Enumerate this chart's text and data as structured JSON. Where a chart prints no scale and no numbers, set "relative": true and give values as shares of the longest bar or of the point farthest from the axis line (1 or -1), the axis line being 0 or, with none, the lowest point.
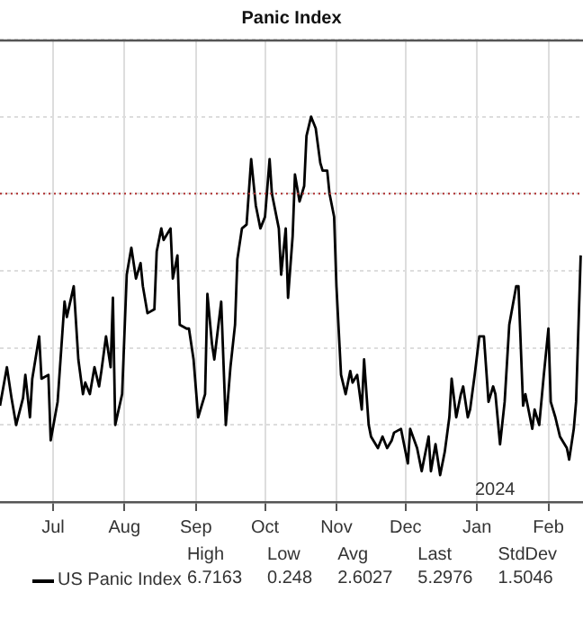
{
  "chart_data": {
    "type": "line",
    "title": "Panic Index",
    "relative": true,
    "grid": true,
    "legend": "bottom",
    "marker": "none",
    "line_style": "solid",
    "xlim": [
      "2023-06-08",
      "2024-02-16"
    ],
    "xticks": [
      {
        "value": "2023-07-01",
        "label": "Jul"
      },
      {
        "value": "2023-08-01",
        "label": "Aug"
      },
      {
        "value": "2023-09-01",
        "label": "Sep"
      },
      {
        "value": "2023-10-01",
        "label": "Oct"
      },
      {
        "value": "2023-11-01",
        "label": "Nov"
      },
      {
        "value": "2023-12-01",
        "label": "Dec"
      },
      {
        "value": "2024-01-01",
        "label": "Jan"
      },
      {
        "value": "2024-02-01",
        "label": "Feb"
      }
    ],
    "x": [
      "2023-06-08",
      "2023-06-11",
      "2023-06-13",
      "2023-06-15",
      "2023-06-18",
      "2023-06-19",
      "2023-06-21",
      "2023-06-22",
      "2023-06-25",
      "2023-06-26",
      "2023-06-29",
      "2023-06-30",
      "2023-07-03",
      "2023-07-06",
      "2023-07-07",
      "2023-07-10",
      "2023-07-12",
      "2023-07-14",
      "2023-07-15",
      "2023-07-17",
      "2023-07-19",
      "2023-07-21",
      "2023-07-22",
      "2023-07-24",
      "2023-07-26",
      "2023-07-27",
      "2023-07-28",
      "2023-07-31",
      "2023-08-02",
      "2023-08-04",
      "2023-08-06",
      "2023-08-08",
      "2023-08-09",
      "2023-08-11",
      "2023-08-14",
      "2023-08-15",
      "2023-08-17",
      "2023-08-18",
      "2023-08-21",
      "2023-08-22",
      "2023-08-24",
      "2023-08-25",
      "2023-08-28",
      "2023-08-29",
      "2023-08-31",
      "2023-09-02",
      "2023-09-05",
      "2023-09-06",
      "2023-09-08",
      "2023-09-09",
      "2023-09-12",
      "2023-09-14",
      "2023-09-16",
      "2023-09-18",
      "2023-09-19",
      "2023-09-21",
      "2023-09-23",
      "2023-09-25",
      "2023-09-27",
      "2023-09-29",
      "2023-10-01",
      "2023-10-03",
      "2023-10-04",
      "2023-10-07",
      "2023-10-08",
      "2023-10-10",
      "2023-10-11",
      "2023-10-13",
      "2023-10-14",
      "2023-10-16",
      "2023-10-18",
      "2023-10-19",
      "2023-10-21",
      "2023-10-23",
      "2023-10-25",
      "2023-10-26",
      "2023-10-28",
      "2023-10-29",
      "2023-10-31",
      "2023-11-01",
      "2023-11-03",
      "2023-11-05",
      "2023-11-07",
      "2023-11-08",
      "2023-11-10",
      "2023-11-12",
      "2023-11-13",
      "2023-11-15",
      "2023-11-16",
      "2023-11-19",
      "2023-11-21",
      "2023-11-23",
      "2023-11-25",
      "2023-11-26",
      "2023-11-29",
      "2023-12-02",
      "2023-12-03",
      "2023-12-06",
      "2023-12-08",
      "2023-12-11",
      "2023-12-12",
      "2023-12-14",
      "2023-12-16",
      "2023-12-18",
      "2023-12-20",
      "2023-12-21",
      "2023-12-23",
      "2023-12-25",
      "2023-12-26",
      "2023-12-28",
      "2023-12-29",
      "2023-12-31",
      "2024-01-02",
      "2024-01-04",
      "2024-01-06",
      "2024-01-08",
      "2024-01-09",
      "2024-01-11",
      "2024-01-13",
      "2024-01-15",
      "2024-01-18",
      "2024-01-19",
      "2024-01-21",
      "2024-01-22",
      "2024-01-25",
      "2024-01-26",
      "2024-01-28",
      "2024-01-30",
      "2024-02-01",
      "2024-02-02",
      "2024-02-04",
      "2024-02-06",
      "2024-02-09",
      "2024-02-10",
      "2024-02-12",
      "2024-02-13",
      "2024-02-15"
    ],
    "series": [
      {
        "name": "US Panic Index",
        "color": "#000000",
        "values": [
          0.25,
          0.35,
          0.27,
          0.2,
          0.27,
          0.33,
          0.22,
          0.32,
          0.43,
          0.32,
          0.33,
          0.16,
          0.26,
          0.52,
          0.48,
          0.56,
          0.37,
          0.28,
          0.31,
          0.28,
          0.35,
          0.3,
          0.34,
          0.43,
          0.35,
          0.53,
          0.2,
          0.28,
          0.59,
          0.66,
          0.58,
          0.62,
          0.56,
          0.49,
          0.5,
          0.65,
          0.71,
          0.68,
          0.71,
          0.58,
          0.64,
          0.46,
          0.45,
          0.45,
          0.37,
          0.22,
          0.28,
          0.54,
          0.41,
          0.37,
          0.52,
          0.2,
          0.35,
          0.46,
          0.63,
          0.71,
          0.72,
          0.89,
          0.77,
          0.71,
          0.74,
          0.89,
          0.8,
          0.71,
          0.59,
          0.71,
          0.53,
          0.69,
          0.85,
          0.78,
          0.82,
          0.95,
          1,
          0.97,
          0.88,
          0.86,
          0.86,
          0.8,
          0.74,
          0.56,
          0.33,
          0.28,
          0.34,
          0.31,
          0.33,
          0.24,
          0.37,
          0.2,
          0.17,
          0.14,
          0.17,
          0.14,
          0.16,
          0.18,
          0.19,
          0.1,
          0.19,
          0.14,
          0.08,
          0.17,
          0.08,
          0.15,
          0.07,
          0.13,
          0.22,
          0.32,
          0.22,
          0.28,
          0.3,
          0.22,
          0.24,
          0.33,
          0.43,
          0.43,
          0.26,
          0.3,
          0.28,
          0.15,
          0.26,
          0.46,
          0.56,
          0.56,
          0.25,
          0.28,
          0.19,
          0.24,
          0.2,
          0.33,
          0.45,
          0.26,
          0.22,
          0.17,
          0.14,
          0.11,
          0.19,
          0.26,
          0.64
        ]
      }
    ],
    "ref_lines": [
      {
        "axis": "y",
        "value": 0.8,
        "color": "#b03030",
        "line_style": "dotted"
      }
    ],
    "annotations": [
      "2024",
      "High",
      "6.7163",
      "Low",
      "0.248",
      "Avg",
      "2.6027",
      "Last",
      "5.2976",
      "StdDev",
      "1.5046"
    ]
  }
}
